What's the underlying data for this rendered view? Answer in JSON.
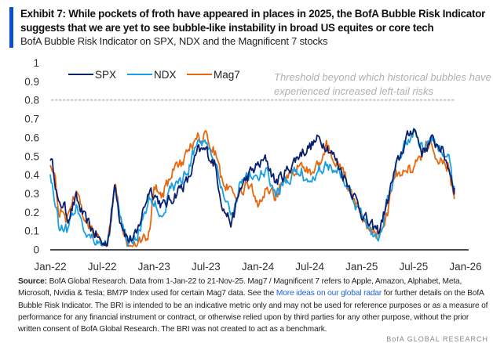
{
  "header": {
    "title": "Exhibit 7: While pockets of froth have appeared in places in 2025, the BofA Bubble Risk Indicator suggests that we are yet to see bubble-like instability in broad US equites or core tech",
    "subtitle": "BofA Bubble Risk Indicator on SPX, NDX and the Magnificent 7 stocks"
  },
  "footer": {
    "source_label": "Source:",
    "text_1": " BofA Global Research. Data from 1-Jan-22 to 21-Nov-25. Mag7 / Magnificent 7 refers to Apple, Amazon, Alphabet, Meta, Microsoft, Nvidia & Tesla; BM7P Index used for certain Mag7 data. See the ",
    "link_text": "More ideas on our global radar",
    "text_2": " for further details on the BofA Bubble Risk Indicator. The BRI is intended to be an indicative metric only and may not be used for reference purposes or as a measure of performance for any financial instrument or contract, or otherwise relied upon by third parties for any other purpose, without the prior written consent of BofA Global Research. The BRI was not created to act as a benchmark.",
    "brand": "BofA GLOBAL RESEARCH"
  },
  "chart_data": {
    "type": "line",
    "title": "BofA Bubble Risk Indicator on SPX, NDX and the Magnificent 7 stocks",
    "xlabel": "",
    "ylabel": "",
    "ylim": [
      0,
      1
    ],
    "yticks": [
      "0",
      "0.1",
      "0.2",
      "0.3",
      "0.4",
      "0.5",
      "0.6",
      "0.7",
      "0.8",
      "0.9",
      "1"
    ],
    "xticks": [
      "Jan-22",
      "Jul-22",
      "Jan-23",
      "Jul-23",
      "Jan-24",
      "Jul-24",
      "Jan-25",
      "Jul-25",
      "Jan-26"
    ],
    "x_range": [
      "2022-01-01",
      "2026-01-01"
    ],
    "data_end": "2025-11-21",
    "grid": false,
    "legend": "top-left",
    "threshold": {
      "value": 0.8,
      "label_line1": "Threshold beyond which historical bubbles have",
      "label_line2": "experienced increased left-tail risks",
      "style": "dotted",
      "color": "#c8c8c8"
    },
    "x_months": [
      0,
      0.5,
      1,
      1.5,
      2,
      3,
      4,
      5,
      6,
      6.5,
      7,
      7.5,
      8,
      9,
      10,
      10.5,
      11,
      11.5,
      12,
      13,
      14,
      15,
      16,
      17,
      18,
      19,
      20,
      21,
      22,
      23,
      24,
      25,
      26,
      27,
      28,
      29,
      30,
      31,
      32,
      33,
      34,
      35,
      36,
      37,
      38,
      38.5,
      39,
      39.5,
      40,
      41,
      42,
      43,
      44,
      45,
      46,
      46.7
    ],
    "series": [
      {
        "name": "SPX",
        "color": "#0a1f6e",
        "values": [
          0.5,
          0.4,
          0.22,
          0.25,
          0.17,
          0.27,
          0.16,
          0.1,
          0.03,
          0.03,
          0.15,
          0.37,
          0.18,
          0.05,
          0.07,
          0.17,
          0.25,
          0.33,
          0.3,
          0.23,
          0.27,
          0.33,
          0.37,
          0.52,
          0.53,
          0.46,
          0.22,
          0.14,
          0.33,
          0.4,
          0.45,
          0.48,
          0.36,
          0.4,
          0.46,
          0.52,
          0.55,
          0.59,
          0.56,
          0.48,
          0.39,
          0.3,
          0.2,
          0.12,
          0.1,
          0.18,
          0.26,
          0.36,
          0.44,
          0.57,
          0.66,
          0.52,
          0.58,
          0.56,
          0.45,
          0.33
        ]
      },
      {
        "name": "NDX",
        "color": "#1aa0e2",
        "values": [
          0.4,
          0.28,
          0.12,
          0.13,
          0.11,
          0.24,
          0.1,
          0.07,
          0.02,
          0.02,
          0.13,
          0.36,
          0.16,
          0.03,
          0.07,
          0.14,
          0.19,
          0.27,
          0.26,
          0.19,
          0.33,
          0.36,
          0.43,
          0.59,
          0.57,
          0.48,
          0.27,
          0.19,
          0.37,
          0.4,
          0.39,
          0.41,
          0.29,
          0.34,
          0.4,
          0.42,
          0.35,
          0.44,
          0.45,
          0.44,
          0.39,
          0.28,
          0.18,
          0.1,
          0.07,
          0.16,
          0.26,
          0.36,
          0.5,
          0.56,
          0.64,
          0.54,
          0.58,
          0.55,
          0.49,
          0.33
        ]
      },
      {
        "name": "Mag7",
        "color": "#e8680f",
        "values": [
          0.47,
          0.4,
          0.2,
          0.23,
          0.15,
          0.31,
          0.16,
          0.08,
          0.03,
          0.03,
          0.13,
          0.38,
          0.19,
          0.03,
          0.03,
          0.05,
          0.05,
          0.1,
          0.34,
          0.3,
          0.4,
          0.45,
          0.52,
          0.61,
          0.6,
          0.52,
          0.34,
          0.31,
          0.3,
          0.35,
          0.24,
          0.34,
          0.28,
          0.36,
          0.42,
          0.45,
          0.4,
          0.45,
          0.56,
          0.47,
          0.4,
          0.27,
          0.17,
          0.1,
          0.08,
          0.14,
          0.2,
          0.33,
          0.4,
          0.45,
          0.42,
          0.52,
          0.6,
          0.46,
          0.45,
          0.27
        ]
      }
    ]
  }
}
